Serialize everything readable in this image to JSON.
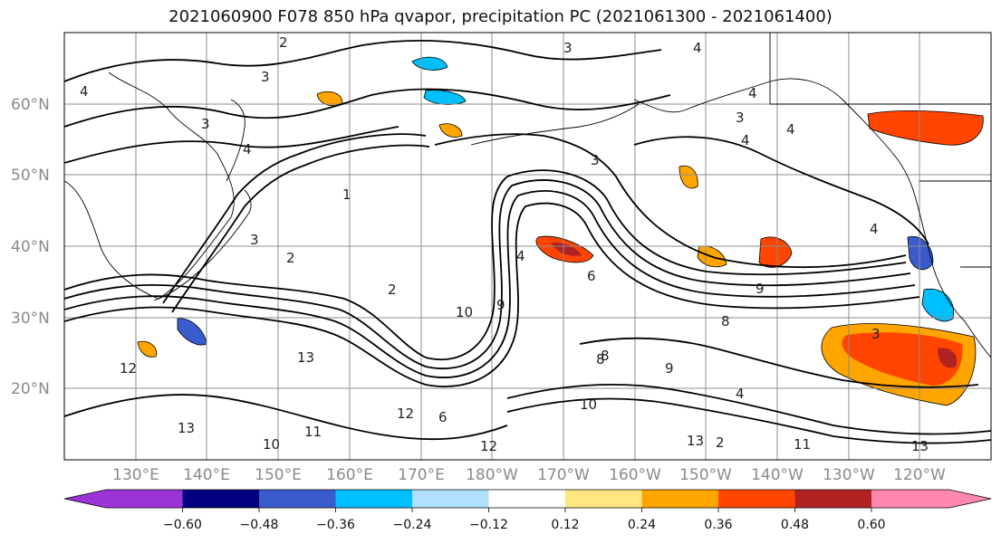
{
  "title": "2021060900 F078 850 hPa qvapor, precipitation PC (2021061300 - 2021061400)",
  "map": {
    "latitude_labels": [
      "60°N",
      "50°N",
      "40°N",
      "30°N",
      "20°N"
    ],
    "longitude_labels": [
      "130°E",
      "140°E",
      "150°E",
      "160°E",
      "170°E",
      "180°W",
      "170°W",
      "160°W",
      "150°W",
      "140°W",
      "130°W",
      "120°W"
    ],
    "contour_labels": [
      "2",
      "3",
      "4",
      "3",
      "4",
      "4",
      "4",
      "3",
      "4",
      "3",
      "4",
      "1",
      "3",
      "2",
      "2",
      "4",
      "6",
      "8",
      "9",
      "8",
      "10",
      "12",
      "13",
      "13",
      "11",
      "10",
      "12",
      "13",
      "9",
      "6",
      "10",
      "8",
      "4",
      "3",
      "13",
      "12",
      "11",
      "2",
      "9",
      "3",
      "4"
    ],
    "contour_color": "#000000",
    "coastline_color": "#000000",
    "gridline_color": "#8c8c8c"
  },
  "colorbar": {
    "tick_labels": [
      "−0.60",
      "−0.48",
      "−0.36",
      "−0.24",
      "−0.12",
      "0.12",
      "0.24",
      "0.36",
      "0.48",
      "0.60"
    ],
    "colors": [
      "#9a34d6",
      "#000080",
      "#3a5bcc",
      "#00bfff",
      "#b0e0ff",
      "#ffffff",
      "#ffe680",
      "#ffa500",
      "#ff4500",
      "#b22222",
      "#ff88b0"
    ]
  }
}
